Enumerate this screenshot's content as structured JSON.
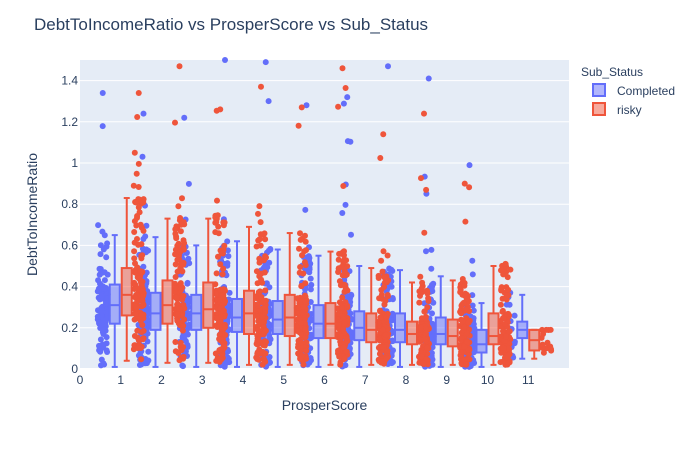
{
  "chart_data": {
    "type": "box",
    "title": "DebtToIncomeRatio vs ProsperScore vs Sub_Status",
    "xlabel": "ProsperScore",
    "ylabel": "DebtToIncomeRatio",
    "xlim": [
      0,
      12
    ],
    "ylim": [
      0,
      1.5
    ],
    "x_ticks": [
      0,
      1,
      2,
      3,
      4,
      5,
      6,
      7,
      8,
      9,
      10,
      11
    ],
    "y_ticks": [
      0,
      0.2,
      0.4,
      0.6,
      0.8,
      1,
      1.2,
      1.4
    ],
    "legend": {
      "title": "Sub_Status",
      "placement": "top-right"
    },
    "grid": true,
    "points_shown": "all",
    "series": [
      {
        "name": "Completed",
        "color": "#636efa",
        "boxes": [
          {
            "x": 1,
            "lowerfence": 0.01,
            "q1": 0.22,
            "median": 0.31,
            "q3": 0.41,
            "upperfence": 0.65,
            "max_point": 1.34
          },
          {
            "x": 2,
            "lowerfence": 0.01,
            "q1": 0.19,
            "median": 0.27,
            "q3": 0.37,
            "upperfence": 0.64,
            "max_point": 1.24
          },
          {
            "x": 3,
            "lowerfence": 0.01,
            "q1": 0.19,
            "median": 0.27,
            "q3": 0.36,
            "upperfence": 0.6,
            "max_point": 1.22
          },
          {
            "x": 4,
            "lowerfence": 0.01,
            "q1": 0.18,
            "median": 0.25,
            "q3": 0.34,
            "upperfence": 0.62,
            "max_point": 1.5
          },
          {
            "x": 5,
            "lowerfence": 0.01,
            "q1": 0.17,
            "median": 0.24,
            "q3": 0.33,
            "upperfence": 0.58,
            "max_point": 1.49
          },
          {
            "x": 6,
            "lowerfence": 0.01,
            "q1": 0.15,
            "median": 0.22,
            "q3": 0.31,
            "upperfence": 0.55,
            "max_point": 1.28
          },
          {
            "x": 7,
            "lowerfence": 0.01,
            "q1": 0.14,
            "median": 0.2,
            "q3": 0.28,
            "upperfence": 0.5,
            "max_point": 1.32
          },
          {
            "x": 8,
            "lowerfence": 0.01,
            "q1": 0.13,
            "median": 0.19,
            "q3": 0.27,
            "upperfence": 0.48,
            "max_point": 1.47
          },
          {
            "x": 9,
            "lowerfence": 0.01,
            "q1": 0.12,
            "median": 0.17,
            "q3": 0.25,
            "upperfence": 0.45,
            "max_point": 1.41
          },
          {
            "x": 10,
            "lowerfence": 0.01,
            "q1": 0.08,
            "median": 0.12,
            "q3": 0.19,
            "upperfence": 0.32,
            "max_point": 0.99
          },
          {
            "x": 11,
            "lowerfence": 0.05,
            "q1": 0.15,
            "median": 0.19,
            "q3": 0.23,
            "upperfence": 0.36,
            "max_point": 0.37
          }
        ]
      },
      {
        "name": "risky",
        "color": "#ef553b",
        "boxes": [
          {
            "x": 1,
            "lowerfence": 0.04,
            "q1": 0.26,
            "median": 0.36,
            "q3": 0.49,
            "upperfence": 0.83,
            "max_point": 1.34
          },
          {
            "x": 2,
            "lowerfence": 0.03,
            "q1": 0.22,
            "median": 0.31,
            "q3": 0.43,
            "upperfence": 0.73,
            "max_point": 1.47
          },
          {
            "x": 3,
            "lowerfence": 0.03,
            "q1": 0.2,
            "median": 0.29,
            "q3": 0.42,
            "upperfence": 0.73,
            "max_point": 1.26
          },
          {
            "x": 4,
            "lowerfence": 0.02,
            "q1": 0.17,
            "median": 0.27,
            "q3": 0.38,
            "upperfence": 0.69,
            "max_point": 1.37
          },
          {
            "x": 5,
            "lowerfence": 0.02,
            "q1": 0.16,
            "median": 0.25,
            "q3": 0.36,
            "upperfence": 0.66,
            "max_point": 1.27
          },
          {
            "x": 6,
            "lowerfence": 0.02,
            "q1": 0.15,
            "median": 0.22,
            "q3": 0.32,
            "upperfence": 0.57,
            "max_point": 1.46
          },
          {
            "x": 7,
            "lowerfence": 0.02,
            "q1": 0.13,
            "median": 0.19,
            "q3": 0.27,
            "upperfence": 0.49,
            "max_point": 1.14
          },
          {
            "x": 8,
            "lowerfence": 0.02,
            "q1": 0.12,
            "median": 0.17,
            "q3": 0.23,
            "upperfence": 0.42,
            "max_point": 1.24
          },
          {
            "x": 9,
            "lowerfence": 0.02,
            "q1": 0.11,
            "median": 0.16,
            "q3": 0.24,
            "upperfence": 0.43,
            "max_point": 0.9
          },
          {
            "x": 10,
            "lowerfence": 0.02,
            "q1": 0.12,
            "median": 0.16,
            "q3": 0.27,
            "upperfence": 0.5,
            "max_point": 0.51
          },
          {
            "x": 11,
            "lowerfence": 0.05,
            "q1": 0.09,
            "median": 0.14,
            "q3": 0.19,
            "upperfence": 0.19,
            "max_point": 0.19
          }
        ]
      }
    ]
  }
}
